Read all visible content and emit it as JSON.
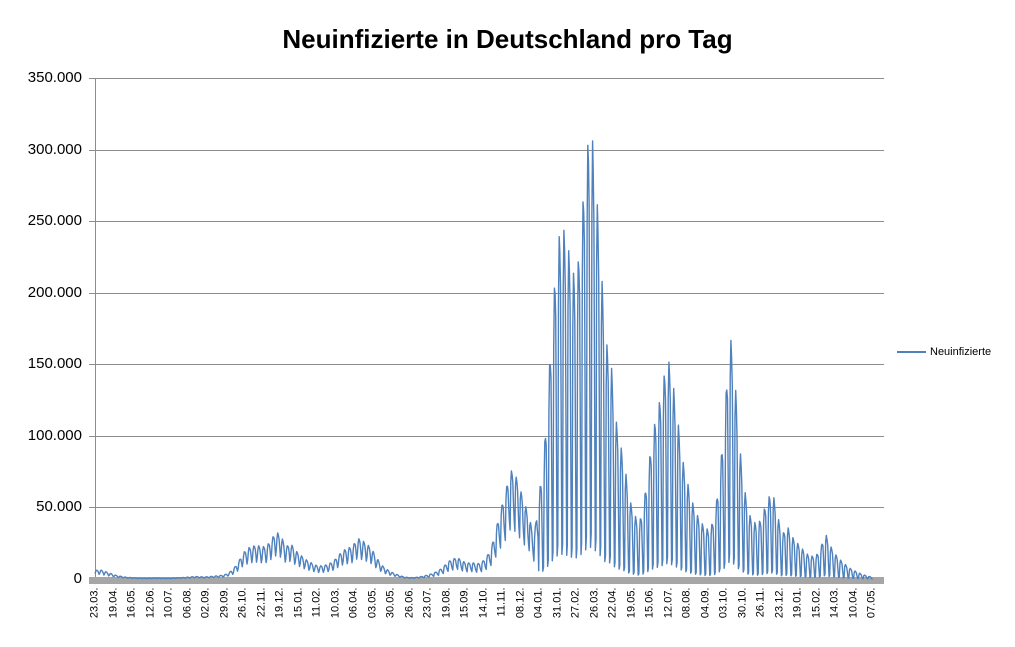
{
  "chart_data": {
    "type": "line",
    "title": "Neuinfizierte in Deutschland pro Tag",
    "series_name": "Neuinfizierte",
    "xlabel": "",
    "ylabel": "",
    "y_range": [
      0,
      350000
    ],
    "grid": true,
    "legend_position": "right",
    "y_tick_labels": [
      "350.000",
      "300.000",
      "250.000",
      "200.000",
      "150.000",
      "100.000",
      "50.000",
      "0"
    ],
    "x_tick_labels": [
      "23.03.",
      "19.04.",
      "16.05.",
      "12.06.",
      "10.07.",
      "06.08.",
      "02.09.",
      "29.09.",
      "26.10.",
      "22.11.",
      "19.12.",
      "15.01.",
      "11.02.",
      "10.03.",
      "06.04.",
      "03.05.",
      "30.05.",
      "26.06.",
      "23.07.",
      "19.08.",
      "15.09.",
      "14.10.",
      "11.11.",
      "08.12.",
      "04.01.",
      "31.01.",
      "27.02.",
      "26.03.",
      "22.04.",
      "19.05.",
      "15.06.",
      "12.07.",
      "08.08.",
      "04.09.",
      "03.10.",
      "30.10.",
      "26.11.",
      "23.12.",
      "19.01.",
      "15.02.",
      "14.03.",
      "10.04.",
      "07.05."
    ],
    "days_per_x_tick": 27.142857,
    "total_days": 1141,
    "weekly_peak_envelope": [
      6000,
      6500,
      5500,
      4200,
      3000,
      2100,
      1500,
      1100,
      850,
      700,
      550,
      500,
      600,
      700,
      550,
      500,
      550,
      800,
      950,
      1150,
      1450,
      1750,
      1550,
      1450,
      1700,
      2000,
      2300,
      2800,
      4200,
      7000,
      11500,
      18000,
      21500,
      23000,
      23500,
      22500,
      23000,
      28000,
      33000,
      30000,
      22500,
      25000,
      20000,
      17000,
      14000,
      12000,
      10000,
      9000,
      9500,
      10500,
      12500,
      16500,
      20000,
      21500,
      23000,
      28500,
      27000,
      24500,
      21000,
      15000,
      10000,
      7000,
      5000,
      3500,
      2200,
      1300,
      950,
      1000,
      1500,
      2100,
      3000,
      4200,
      5800,
      8500,
      12000,
      14000,
      15000,
      12500,
      11000,
      11500,
      10500,
      11500,
      15000,
      21000,
      34000,
      48000,
      60000,
      76000,
      74000,
      64000,
      53000,
      44000,
      28000,
      58000,
      81000,
      133000,
      190000,
      236000,
      247000,
      235000,
      215000,
      210000,
      250000,
      297000,
      318000,
      276000,
      225000,
      165000,
      160000,
      115000,
      96000,
      80000,
      56000,
      46000,
      38000,
      52000,
      78000,
      104000,
      118000,
      136000,
      156000,
      140000,
      116000,
      86000,
      70000,
      56000,
      46000,
      40000,
      35000,
      35000,
      46000,
      76000,
      112000,
      175000,
      146000,
      96000,
      66000,
      46000,
      40000,
      38000,
      46000,
      56000,
      61000,
      46000,
      30000,
      38000,
      30000,
      26000,
      22000,
      18000,
      16000,
      16000,
      20000,
      33000,
      24000,
      18000,
      14000,
      11000,
      8000,
      6000,
      4500,
      3000,
      2000,
      1200
    ],
    "weekday_factor_phases_mon_to_sun": [
      {
        "start_week": 0,
        "factors": [
          0.62,
          0.88,
          1.0,
          0.97,
          0.9,
          0.72,
          0.5
        ]
      },
      {
        "start_week": 68,
        "factors": [
          0.45,
          0.9,
          1.0,
          0.97,
          0.9,
          0.7,
          0.55
        ]
      },
      {
        "start_week": 93,
        "factors": [
          0.1,
          0.82,
          1.0,
          0.95,
          0.85,
          0.45,
          0.07
        ]
      }
    ],
    "colors": {
      "line": "#4F81BD",
      "gridline": "#8C8C8C",
      "axis_line": "#8C8C8C",
      "axis_bar": "#A6A6A6",
      "text": "#000000"
    }
  }
}
